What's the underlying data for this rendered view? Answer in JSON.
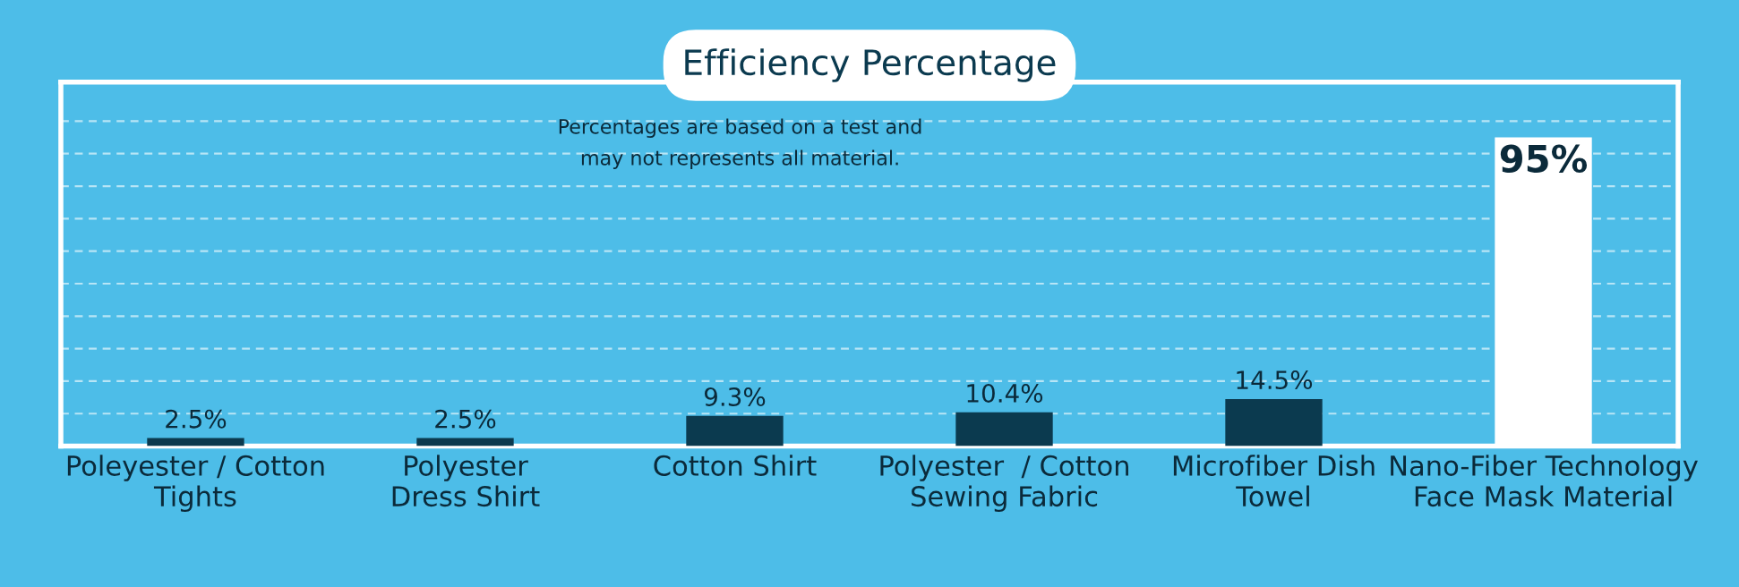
{
  "chart_data": {
    "type": "bar",
    "title": "Efficiency Percentage",
    "categories": [
      "Poleyester / Cotton\nTights",
      "Polyester\nDress Shirt",
      "Cotton Shirt",
      "Polyester  / Cotton\nSewing Fabric",
      "Microfiber Dish\nTowel",
      "Nano-Fiber Technology\nFace Mask Material"
    ],
    "values": [
      2.5,
      2.5,
      9.3,
      10.4,
      14.5,
      95
    ],
    "colors": [
      "#0b3a4f",
      "#0b3a4f",
      "#0b3a4f",
      "#0b3a4f",
      "#0b3a4f",
      "#ffffff"
    ],
    "value_labels": [
      "2.5%",
      "2.5%",
      "9.3%",
      "10.4%",
      "14.5%",
      "95%"
    ],
    "ylim": [
      0,
      112
    ],
    "yticks": [
      {
        "value": 10,
        "label": null
      },
      {
        "value": 20,
        "label": null
      },
      {
        "value": 30,
        "label": null
      },
      {
        "value": 40,
        "label": null
      },
      {
        "value": 50,
        "label": null
      },
      {
        "value": 60,
        "label": null
      },
      {
        "value": 70,
        "label": null
      },
      {
        "value": 80,
        "label": null
      },
      {
        "value": 90,
        "label": null
      },
      {
        "value": 100,
        "label": null
      }
    ],
    "grid": "y",
    "tick_labels": "x",
    "annotations": [
      "Percentages are based on a test and\nmay not represents all material."
    ]
  }
}
